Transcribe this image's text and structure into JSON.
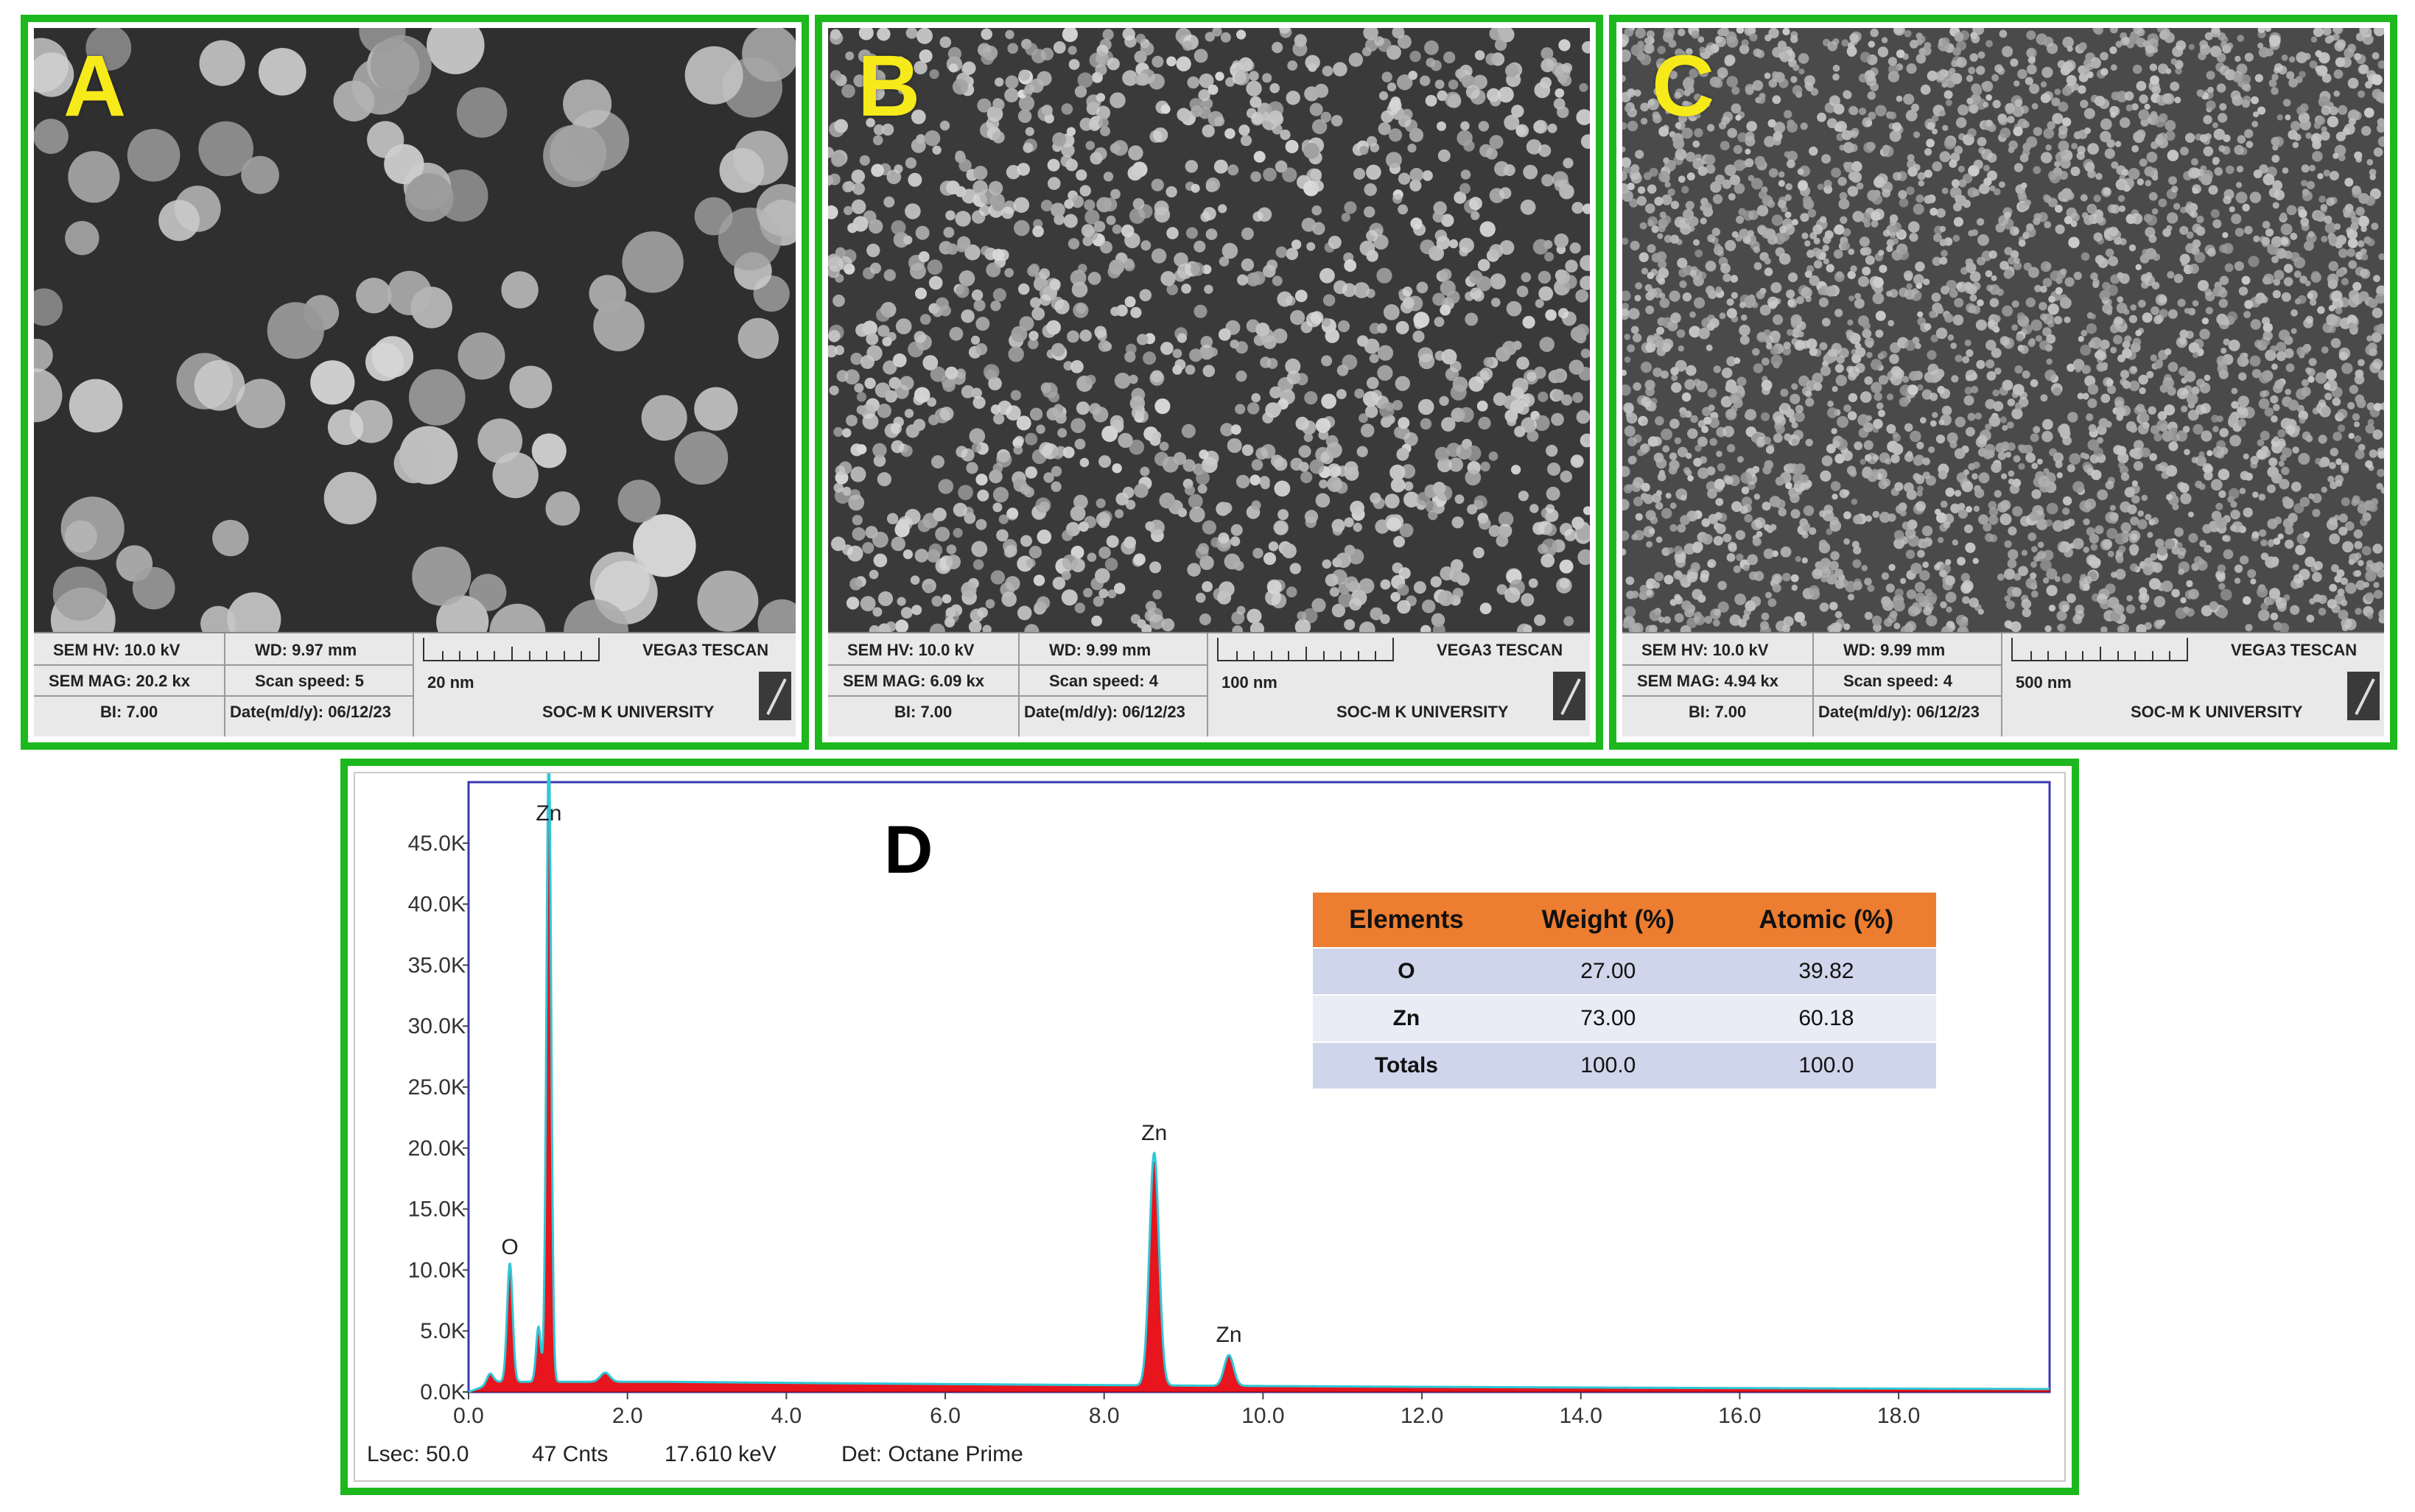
{
  "sem_panels": [
    {
      "letter": "A",
      "hv": "SEM HV: 10.0 kV",
      "wd": "WD: 9.97 mm",
      "mag": "SEM MAG: 20.2 kx",
      "scan": "Scan speed: 5",
      "scale": "20 nm",
      "bi": "BI: 7.00",
      "date": "Date(m/d/y): 06/12/23",
      "brand": "VEGA3 TESCAN",
      "org": "SOC-M K UNIVERSITY"
    },
    {
      "letter": "B",
      "hv": "SEM HV: 10.0 kV",
      "wd": "WD: 9.99 mm",
      "mag": "SEM MAG: 6.09 kx",
      "scan": "Scan speed: 4",
      "scale": "100 nm",
      "bi": "BI: 7.00",
      "date": "Date(m/d/y): 06/12/23",
      "brand": "VEGA3 TESCAN",
      "org": "SOC-M K UNIVERSITY"
    },
    {
      "letter": "C",
      "hv": "SEM HV: 10.0 kV",
      "wd": "WD: 9.99 mm",
      "mag": "SEM MAG: 4.94 kx",
      "scan": "Scan speed: 4",
      "scale": "500 nm",
      "bi": "BI: 7.00",
      "date": "Date(m/d/y): 06/12/23",
      "brand": "VEGA3 TESCAN",
      "org": "SOC-M K UNIVERSITY"
    }
  ],
  "eds": {
    "letter": "D",
    "table": {
      "headers": [
        "Elements",
        "Weight (%)",
        "Atomic (%)"
      ],
      "rows": [
        [
          "O",
          "27.00",
          "39.82"
        ],
        [
          "Zn",
          "73.00",
          "60.18"
        ],
        [
          "Totals",
          "100.0",
          "100.0"
        ]
      ]
    },
    "footer": {
      "lsec": "Lsec: 50.0",
      "cnts": "47 Cnts",
      "kev": "17.610 keV",
      "det": "Det: Octane Prime"
    }
  },
  "chart_data": {
    "type": "line",
    "xlabel": "",
    "ylabel": "",
    "xlim": [
      0,
      19.9
    ],
    "ylim": [
      0,
      50000
    ],
    "x_ticks": [
      "0.0",
      "2.0",
      "4.0",
      "6.0",
      "8.0",
      "10.0",
      "12.0",
      "14.0",
      "16.0",
      "18.0"
    ],
    "y_ticks": [
      "0.0K",
      "5.0K",
      "10.0K",
      "15.0K",
      "20.0K",
      "25.0K",
      "30.0K",
      "35.0K",
      "40.0K",
      "45.0K"
    ],
    "peaks": [
      {
        "label": "O",
        "x": 0.52,
        "y": 9800
      },
      {
        "label": "Zn",
        "x": 1.01,
        "y": 50000
      },
      {
        "label": "Zn",
        "x": 8.63,
        "y": 18800
      },
      {
        "label": "Zn",
        "x": 9.57,
        "y": 2900
      }
    ],
    "minor_peaks": [
      {
        "x": 0.27,
        "y": 1300
      },
      {
        "x": 0.88,
        "y": 4800
      },
      {
        "x": 1.72,
        "y": 1200
      }
    ],
    "background_level": 800,
    "colors": {
      "fill": "#e8141e",
      "line": "#2ec8d6",
      "frame": "#3a3ab0"
    }
  }
}
